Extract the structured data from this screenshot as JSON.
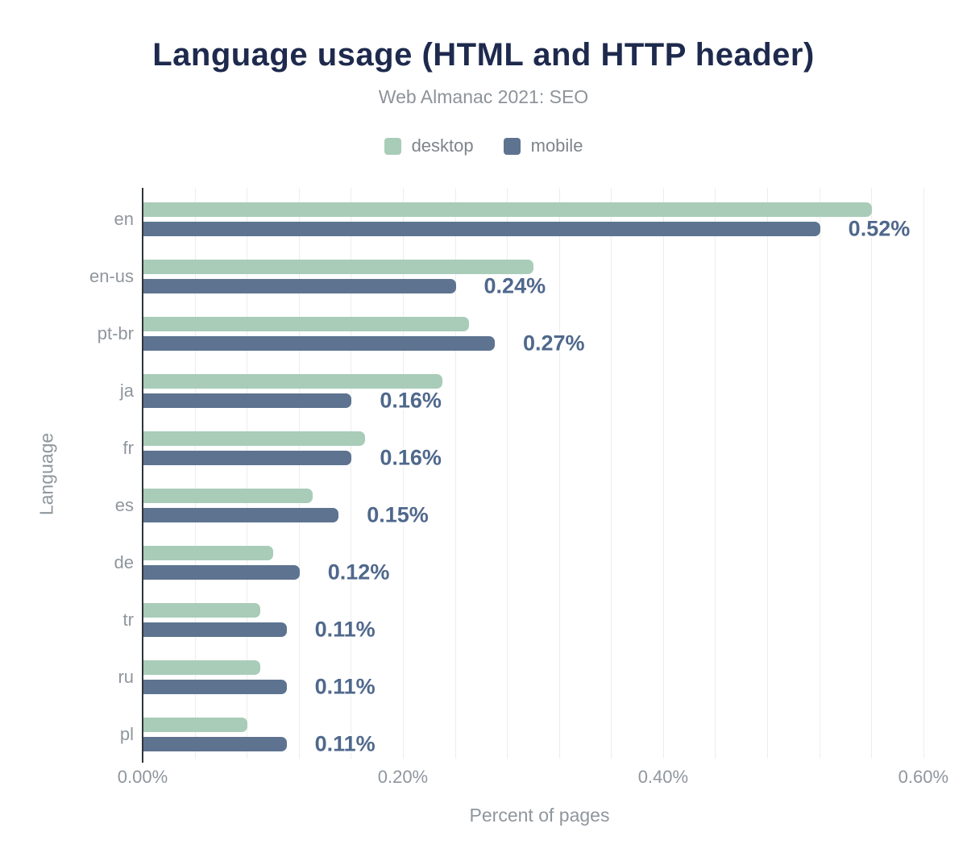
{
  "chart_data": {
    "type": "bar",
    "orientation": "horizontal",
    "title": "Language usage (HTML and HTTP header)",
    "subtitle": "Web Almanac 2021: SEO",
    "xlabel": "Percent of pages",
    "ylabel": "Language",
    "categories": [
      "en",
      "en-us",
      "pt-br",
      "ja",
      "fr",
      "es",
      "de",
      "tr",
      "ru",
      "pl"
    ],
    "series": [
      {
        "name": "desktop",
        "color": "#a8ccb8",
        "values": [
          0.56,
          0.3,
          0.25,
          0.23,
          0.17,
          0.13,
          0.1,
          0.09,
          0.09,
          0.08
        ]
      },
      {
        "name": "mobile",
        "color": "#5d7390",
        "values": [
          0.52,
          0.24,
          0.27,
          0.16,
          0.16,
          0.15,
          0.12,
          0.11,
          0.11,
          0.11
        ]
      }
    ],
    "data_labels": {
      "on_series": "mobile",
      "values": [
        "0.52%",
        "0.24%",
        "0.27%",
        "0.16%",
        "0.16%",
        "0.15%",
        "0.12%",
        "0.11%",
        "0.11%",
        "0.11%"
      ]
    },
    "x_axis": {
      "min": 0,
      "max": 0.61,
      "ticks": [
        {
          "value": 0.0,
          "label": "0.00%"
        },
        {
          "value": 0.2,
          "label": "0.20%"
        },
        {
          "value": 0.4,
          "label": "0.40%"
        },
        {
          "value": 0.6,
          "label": "0.60%"
        }
      ],
      "minor_grid_step": 0.04
    },
    "grid": true,
    "legend_position": "top",
    "colors": {
      "title": "#1e2a4d",
      "subtitle": "#8e9399",
      "annotation": "#4f688c",
      "axis_line": "#30343b",
      "gridline": "#ededed",
      "tick_label": "#8f969d",
      "legend_text": "#7f848a",
      "background": "#ffffff"
    }
  }
}
